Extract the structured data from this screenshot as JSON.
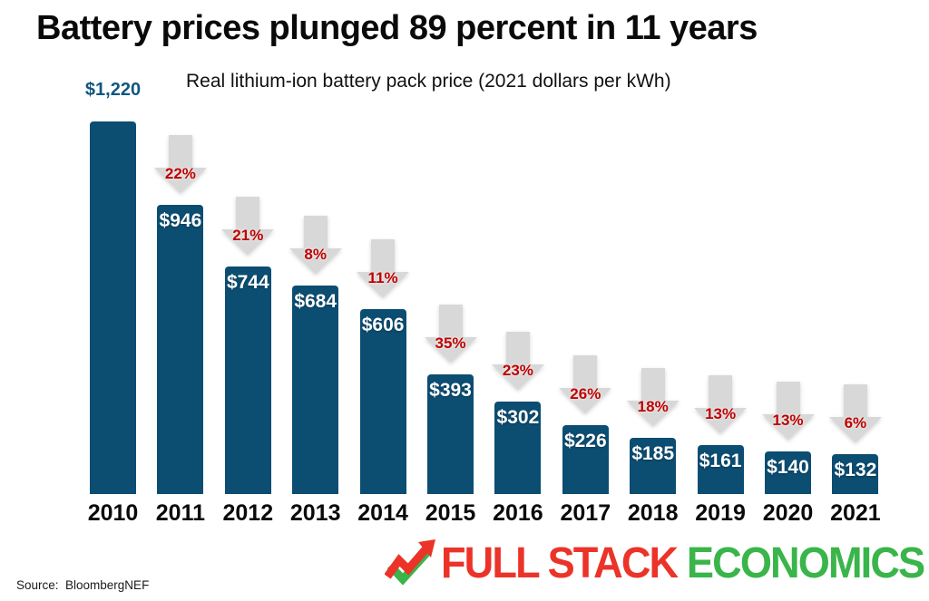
{
  "title": "Battery prices plunged 89 percent in 11 years",
  "subtitle": "Real lithium-ion battery pack price (2021 dollars per kWh)",
  "source": "Source:  BloombergNEF",
  "logo": {
    "icon": "trend-check-icon",
    "part1": "FULL STACK ",
    "part2": "ECONOMICS",
    "red": "#EC3329",
    "green": "#39B54A"
  },
  "colors": {
    "bar": "#0C4D72",
    "bar_label_inside": "#FFFFFF",
    "bar_label_above": "#115780",
    "arrow": "#D8D8D8",
    "pct_text": "#C00000",
    "year_text": "#0A0A0A"
  },
  "chart_data": {
    "type": "bar",
    "title": "Battery prices plunged 89 percent in 11 years",
    "subtitle": "Real lithium-ion battery pack price (2021 dollars per kWh)",
    "categories": [
      "2010",
      "2011",
      "2012",
      "2013",
      "2014",
      "2015",
      "2016",
      "2017",
      "2018",
      "2019",
      "2020",
      "2021"
    ],
    "values": [
      1220,
      946,
      744,
      684,
      606,
      393,
      302,
      226,
      185,
      161,
      140,
      132
    ],
    "value_labels": [
      "$1,220",
      "$946",
      "$744",
      "$684",
      "$606",
      "$393",
      "$302",
      "$226",
      "$185",
      "$161",
      "$140",
      "$132"
    ],
    "pct_decline_labels": [
      null,
      "22%",
      "21%",
      "8%",
      "11%",
      "35%",
      "23%",
      "26%",
      "18%",
      "13%",
      "13%",
      "6%"
    ],
    "xlabel": "",
    "ylabel": "2021 dollars per kWh",
    "ylim": [
      0,
      1220
    ],
    "grid": false,
    "legend": "none",
    "value_label_position": "inside-top (first bar: above in blue)",
    "annotation_style": "gray down-arrow with red percent decline above each bar 2011-2021"
  }
}
